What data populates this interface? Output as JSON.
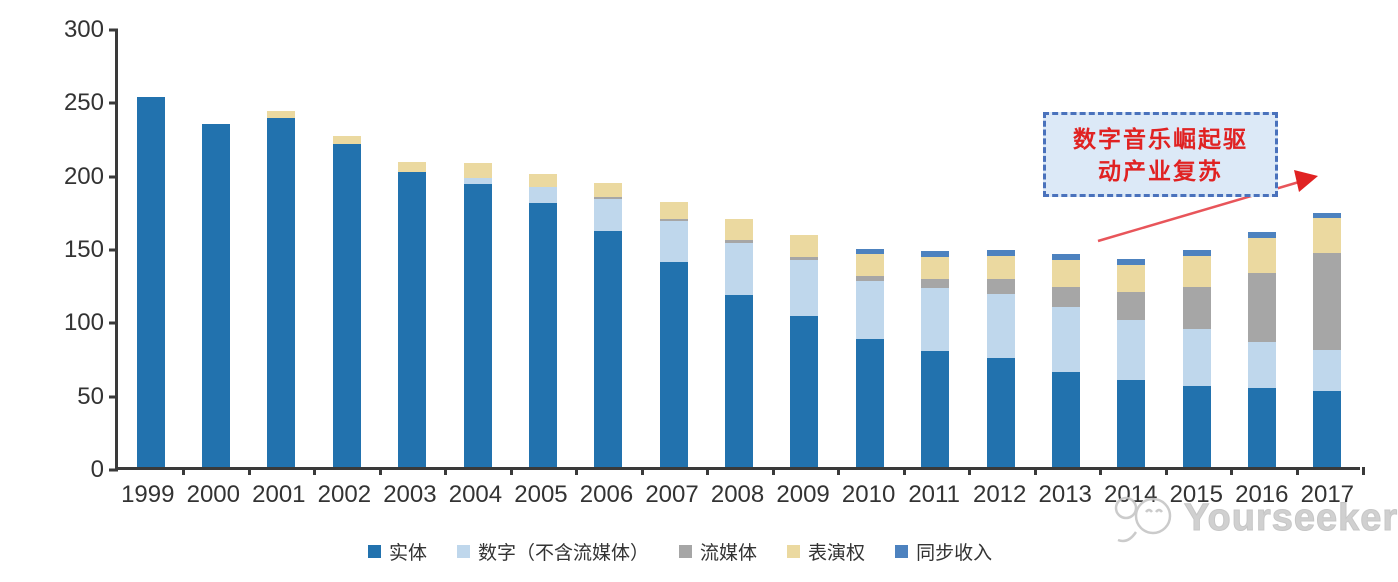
{
  "chart_data": {
    "type": "bar",
    "stacked": true,
    "title": "",
    "xlabel": "",
    "ylabel": "",
    "ylim": [
      0,
      300
    ],
    "yticks": [
      0,
      50,
      100,
      150,
      200,
      250,
      300
    ],
    "grid": false,
    "legend_position": "bottom",
    "categories": [
      "1999",
      "2000",
      "2001",
      "2002",
      "2003",
      "2004",
      "2005",
      "2006",
      "2007",
      "2008",
      "2009",
      "2010",
      "2011",
      "2012",
      "2013",
      "2014",
      "2015",
      "2016",
      "2017"
    ],
    "series": [
      {
        "name": "实体",
        "color": "#2272ae",
        "values": [
          252,
          234,
          238,
          220,
          201,
          193,
          180,
          161,
          140,
          117,
          103,
          87,
          79,
          74,
          65,
          59,
          55,
          54,
          52
        ]
      },
      {
        "name": "数字（不含流媒体）",
        "color": "#bfd7ec",
        "values": [
          0,
          0,
          0,
          0,
          0,
          4,
          11,
          22,
          28,
          36,
          38,
          40,
          43,
          44,
          44,
          41,
          39,
          31,
          28
        ]
      },
      {
        "name": "流媒体",
        "color": "#a6a6a6",
        "values": [
          0,
          0,
          0,
          0,
          0,
          0,
          0,
          1,
          1,
          2,
          2,
          3,
          6,
          10,
          14,
          19,
          29,
          47,
          66
        ]
      },
      {
        "name": "表演权",
        "color": "#ebd9a0",
        "values": [
          0,
          0,
          5,
          6,
          7,
          10,
          9,
          10,
          12,
          14,
          15,
          15,
          15,
          16,
          18,
          19,
          21,
          24,
          24
        ]
      },
      {
        "name": "同步收入",
        "color": "#4d82bf",
        "values": [
          0,
          0,
          0,
          0,
          0,
          0,
          0,
          0,
          0,
          0,
          0,
          4,
          4,
          4,
          4,
          4,
          4,
          4,
          3
        ]
      }
    ],
    "totals": [
      252,
      234,
      243,
      226,
      208,
      207,
      200,
      194,
      181,
      169,
      158,
      149,
      147,
      148,
      145,
      142,
      148,
      160,
      173
    ],
    "annotation_text": "数字音乐崛起驱动产业复苏"
  },
  "annotation": {
    "lines": [
      "数字音乐崛起驱",
      "动产业复苏"
    ],
    "box_fill": "#dce9f7",
    "box_border": "#4a72bc",
    "text_color": "#e02222",
    "arrow_color": "#e8555a"
  },
  "watermark": {
    "text": "Yourseeker"
  }
}
